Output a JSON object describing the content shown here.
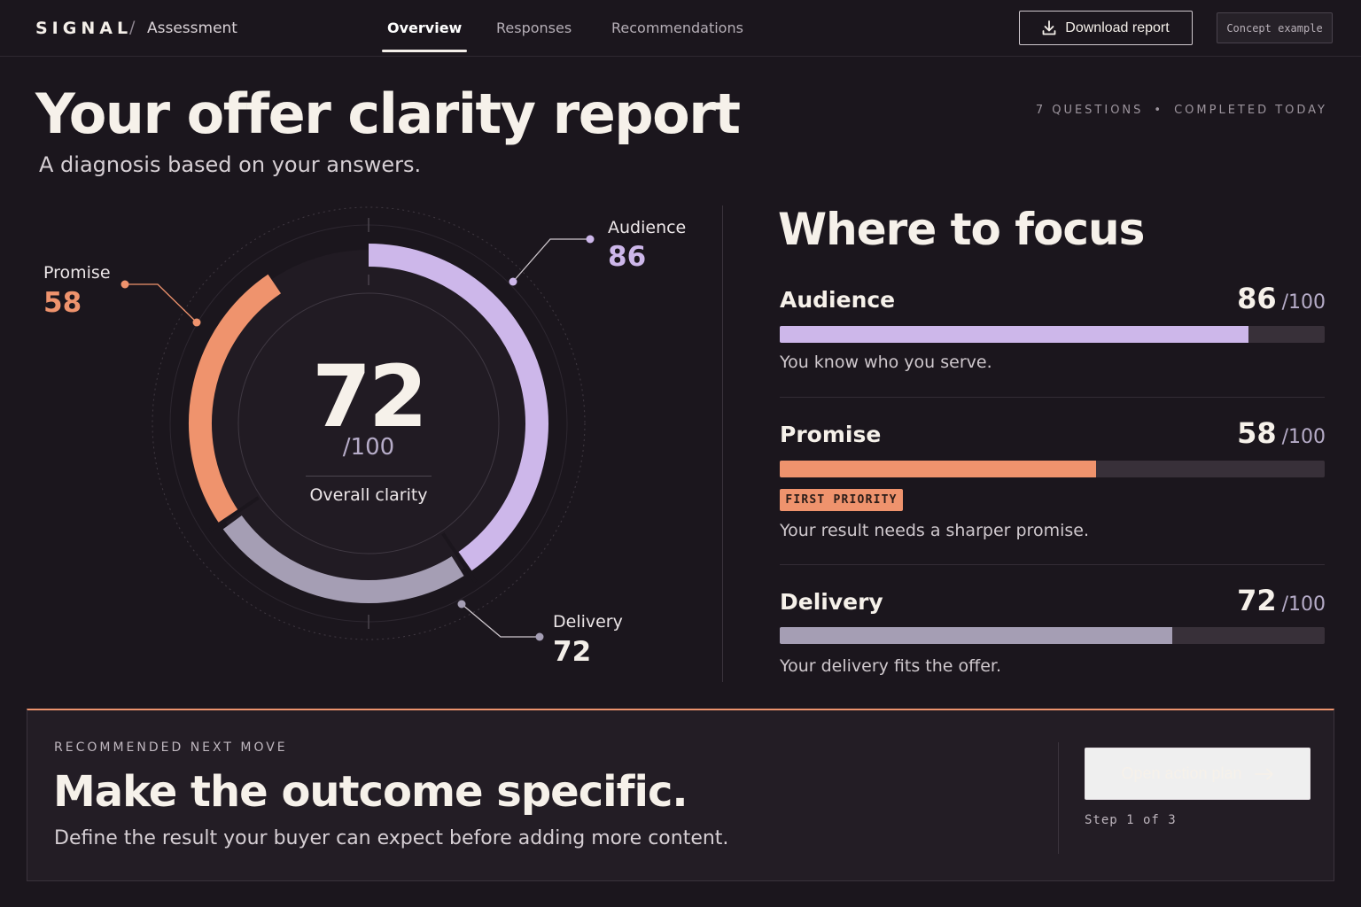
{
  "nav": {
    "brand": "SIGNAL",
    "separator": "/",
    "crumb": "Assessment",
    "tabs": [
      {
        "label": "Overview",
        "active": true
      },
      {
        "label": "Responses",
        "active": false
      },
      {
        "label": "Recommendations",
        "active": false
      }
    ],
    "download_label": "Download report",
    "download_icon": "download-icon",
    "concept_badge": "Concept example"
  },
  "header": {
    "title": "Your offer clarity report",
    "subtitle": "A diagnosis based on your answers.",
    "meta_questions": "7 QUESTIONS",
    "meta_separator": "•",
    "meta_completed": "COMPLETED TODAY"
  },
  "overall": {
    "score": "72",
    "denominator": "/100",
    "label": "Overall clarity"
  },
  "segments": [
    {
      "name": "Audience",
      "score": 86,
      "color": "#cdb7ea"
    },
    {
      "name": "Promise",
      "score": 58,
      "color": "#ef936d"
    },
    {
      "name": "Delivery",
      "score": 72,
      "color": "#a59eb4"
    }
  ],
  "focus": {
    "title": "Where to focus",
    "denominator": "/100",
    "metrics": [
      {
        "name": "Audience",
        "score": "86",
        "fraction": 0.86,
        "color": "#cdb7ea",
        "desc": "You know who you serve.",
        "badge": ""
      },
      {
        "name": "Promise",
        "score": "58",
        "fraction": 0.58,
        "color": "#ef936d",
        "desc": "Your result needs a sharper promise.",
        "badge": "FIRST PRIORITY"
      },
      {
        "name": "Delivery",
        "score": "72",
        "fraction": 0.72,
        "color": "#a59eb4",
        "desc": "Your delivery fits the offer.",
        "badge": ""
      }
    ]
  },
  "next_move": {
    "kicker": "RECOMMENDED NEXT MOVE",
    "title": "Make the outcome specific.",
    "desc": "Define the result your buyer can expect before adding more content.",
    "action_label": "Open action plan",
    "action_icon": "arrow-right-icon",
    "step": "Step 1 of 3"
  }
}
